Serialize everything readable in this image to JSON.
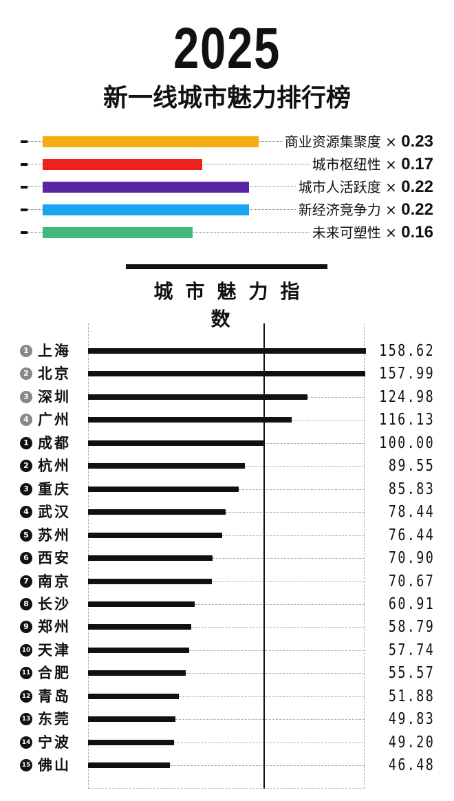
{
  "header": {
    "year": "2025",
    "subtitle": "新一线城市魅力排行榜"
  },
  "weights": [
    {
      "label": "商业资源集聚度",
      "times": "×",
      "weight": "0.23",
      "color": "#F5AC10"
    },
    {
      "label": "城市枢纽性",
      "times": "×",
      "weight": "0.17",
      "color": "#EE2020"
    },
    {
      "label": "城市人活跃度",
      "times": "×",
      "weight": "0.22",
      "color": "#5A25A0"
    },
    {
      "label": "新经济竞争力",
      "times": "×",
      "weight": "0.22",
      "color": "#1AA3EE"
    },
    {
      "label": "未来可塑性",
      "times": "×",
      "weight": "0.16",
      "color": "#3FB878"
    }
  ],
  "chart_data": {
    "type": "bar",
    "orientation": "horizontal",
    "title": "城市魅力指数",
    "reference_value": 100,
    "xlim": [
      0,
      158.62
    ],
    "colors": {
      "bar": "#111111",
      "top_tier_badge": "#888888",
      "new_tier_badge": "#111111"
    },
    "rows": [
      {
        "rank": "1",
        "tier": "top",
        "city": "上海",
        "value": 158.62,
        "label": "158.62"
      },
      {
        "rank": "2",
        "tier": "top",
        "city": "北京",
        "value": 157.99,
        "label": "157.99"
      },
      {
        "rank": "3",
        "tier": "top",
        "city": "深圳",
        "value": 124.98,
        "label": "124.98"
      },
      {
        "rank": "4",
        "tier": "top",
        "city": "广州",
        "value": 116.13,
        "label": "116.13"
      },
      {
        "rank": "1",
        "tier": "new",
        "city": "成都",
        "value": 100.0,
        "label": "100.00"
      },
      {
        "rank": "2",
        "tier": "new",
        "city": "杭州",
        "value": 89.55,
        "label": "89.55"
      },
      {
        "rank": "3",
        "tier": "new",
        "city": "重庆",
        "value": 85.83,
        "label": "85.83"
      },
      {
        "rank": "4",
        "tier": "new",
        "city": "武汉",
        "value": 78.44,
        "label": "78.44"
      },
      {
        "rank": "5",
        "tier": "new",
        "city": "苏州",
        "value": 76.44,
        "label": "76.44"
      },
      {
        "rank": "6",
        "tier": "new",
        "city": "西安",
        "value": 70.9,
        "label": "70.90"
      },
      {
        "rank": "7",
        "tier": "new",
        "city": "南京",
        "value": 70.67,
        "label": "70.67"
      },
      {
        "rank": "8",
        "tier": "new",
        "city": "长沙",
        "value": 60.91,
        "label": "60.91"
      },
      {
        "rank": "9",
        "tier": "new",
        "city": "郑州",
        "value": 58.79,
        "label": "58.79"
      },
      {
        "rank": "10",
        "tier": "new",
        "city": "天津",
        "value": 57.74,
        "label": "57.74"
      },
      {
        "rank": "11",
        "tier": "new",
        "city": "合肥",
        "value": 55.57,
        "label": "55.57"
      },
      {
        "rank": "12",
        "tier": "new",
        "city": "青岛",
        "value": 51.88,
        "label": "51.88"
      },
      {
        "rank": "13",
        "tier": "new",
        "city": "东莞",
        "value": 49.83,
        "label": "49.83"
      },
      {
        "rank": "14",
        "tier": "new",
        "city": "宁波",
        "value": 49.2,
        "label": "49.20"
      },
      {
        "rank": "15",
        "tier": "new",
        "city": "佛山",
        "value": 46.48,
        "label": "46.48"
      }
    ]
  }
}
